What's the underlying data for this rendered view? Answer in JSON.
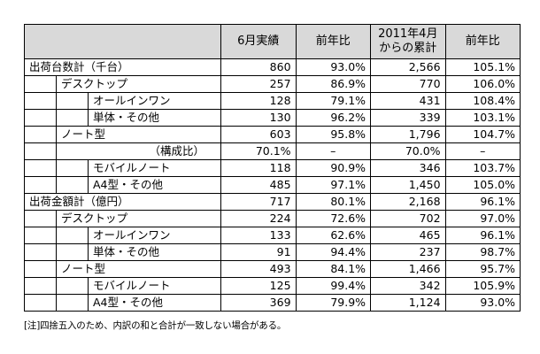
{
  "header": {
    "col1": "6月実績",
    "col2": "前年比",
    "col3_line1": "2011年4月",
    "col3_line2": "からの累計",
    "col4": "前年比"
  },
  "rows": [
    {
      "label": "出荷台数計（千台）",
      "v": [
        "860",
        "93.0%",
        "2,566",
        "105.1%"
      ]
    },
    {
      "label": "デスクトップ",
      "v": [
        "257",
        "86.9%",
        "770",
        "106.0%"
      ]
    },
    {
      "label": "オールインワン",
      "v": [
        "128",
        "79.1%",
        "431",
        "108.4%"
      ]
    },
    {
      "label": "単体・その他",
      "v": [
        "130",
        "96.2%",
        "339",
        "103.1%"
      ]
    },
    {
      "label": "ノート型",
      "v": [
        "603",
        "95.8%",
        "1,796",
        "104.7%"
      ]
    },
    {
      "label": "（構成比）",
      "v": [
        "70.1%",
        "–",
        "70.0%",
        "–"
      ]
    },
    {
      "label": "モバイルノート",
      "v": [
        "118",
        "90.9%",
        "346",
        "103.7%"
      ]
    },
    {
      "label": "A4型・その他",
      "v": [
        "485",
        "97.1%",
        "1,450",
        "105.0%"
      ]
    },
    {
      "label": "出荷金額計（億円）",
      "v": [
        "717",
        "80.1%",
        "2,168",
        "96.1%"
      ]
    },
    {
      "label": "デスクトップ",
      "v": [
        "224",
        "72.6%",
        "702",
        "97.0%"
      ]
    },
    {
      "label": "オールインワン",
      "v": [
        "133",
        "62.6%",
        "465",
        "96.1%"
      ]
    },
    {
      "label": "単体・その他",
      "v": [
        "91",
        "94.4%",
        "237",
        "98.7%"
      ]
    },
    {
      "label": "ノート型",
      "v": [
        "493",
        "84.1%",
        "1,466",
        "95.7%"
      ]
    },
    {
      "label": "モバイルノート",
      "v": [
        "125",
        "99.4%",
        "342",
        "105.9%"
      ]
    },
    {
      "label": "A4型・その他",
      "v": [
        "369",
        "79.9%",
        "1,124",
        "93.0%"
      ]
    }
  ],
  "note": "[注]四捨五入のため、内訳の和と合計が一致しない場合がある。"
}
